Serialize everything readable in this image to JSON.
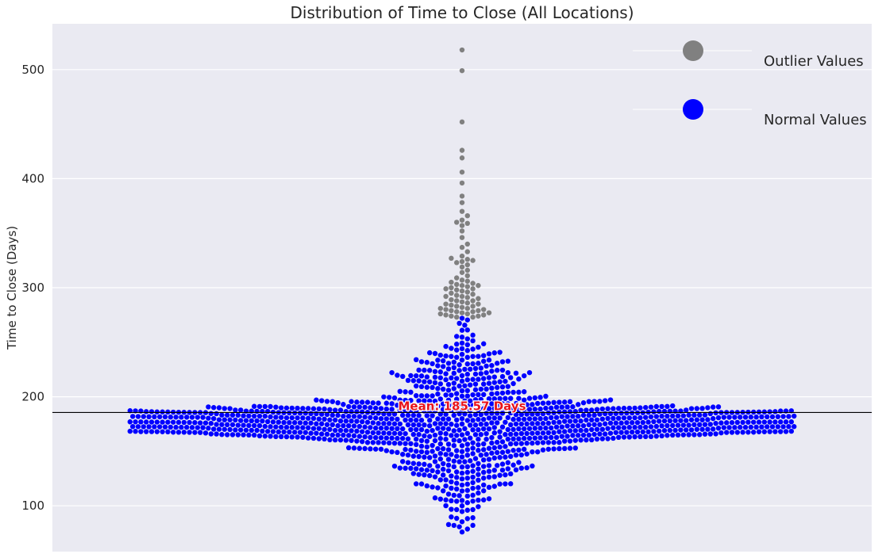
{
  "chart_data": {
    "type": "scatter",
    "subtype": "swarm",
    "title": "Distribution of Time to Close (All Locations)",
    "xlabel": "",
    "ylabel": "Time to Close (Days)",
    "ylim": [
      58,
      542
    ],
    "yticks": [
      100,
      200,
      300,
      400,
      500
    ],
    "grid": true,
    "background": "#eaeaf2",
    "mean": {
      "value": 185.57,
      "label": "Mean: 185.57 Days",
      "line_color": "#000000",
      "label_color": "#e8141c"
    },
    "legend": {
      "placement": "top-right",
      "entries": [
        {
          "label": "Outlier Values",
          "color": "#808080"
        },
        {
          "label": "Normal Values",
          "color": "#0000ff"
        }
      ]
    },
    "series": [
      {
        "name": "Outlier Values",
        "color": "#808080",
        "values": [
          518,
          499,
          452,
          426,
          419,
          406,
          396,
          384,
          378,
          370,
          366,
          362,
          360,
          359,
          357,
          352,
          346,
          340,
          337,
          333,
          329,
          327,
          326,
          325,
          324,
          323,
          321,
          319,
          316,
          314,
          311,
          309,
          307,
          306,
          305,
          304,
          303,
          302,
          302,
          301,
          300,
          299,
          299,
          298,
          297,
          296,
          295,
          294,
          293,
          292,
          292,
          291,
          290,
          289,
          288,
          288,
          287,
          286,
          285,
          285,
          284,
          283,
          283,
          282,
          281,
          281,
          280,
          280,
          279,
          279,
          278,
          278,
          277,
          277,
          276,
          276,
          275,
          275,
          274,
          274,
          273,
          273
        ]
      },
      {
        "name": "Normal Values",
        "color": "#0000ff",
        "generated": {
          "count": 1500,
          "min": 76,
          "max": 272,
          "center": 176,
          "spread": 9,
          "tail_spread": 42,
          "peak_fraction": 0.58
        }
      }
    ]
  }
}
